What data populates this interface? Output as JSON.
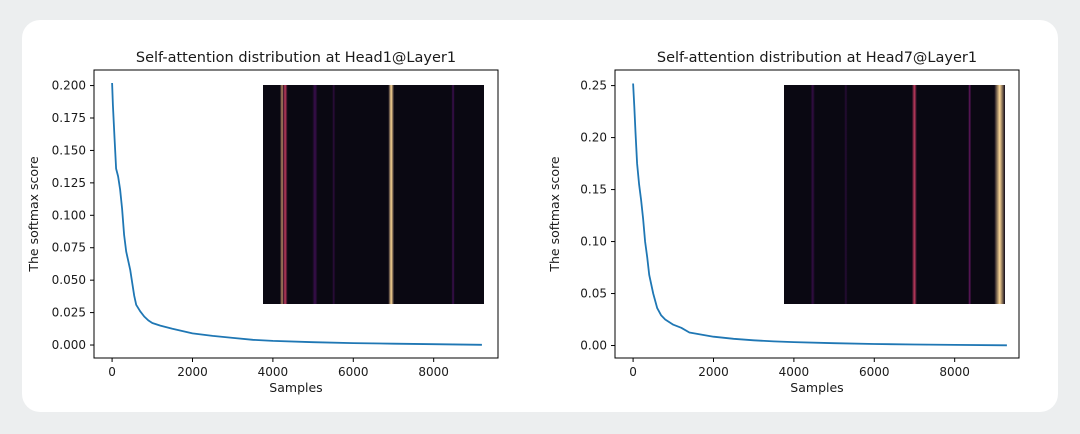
{
  "chart_data": [
    {
      "type": "line",
      "title": "Self-attention distribution at Head1@Layer1",
      "xlabel": "Samples",
      "ylabel": "The softmax score",
      "xlim": [
        -450,
        9600
      ],
      "ylim": [
        -0.01,
        0.212
      ],
      "xticks": [
        0,
        2000,
        4000,
        6000,
        8000
      ],
      "xtick_labels": [
        "0",
        "2000",
        "4000",
        "6000",
        "8000"
      ],
      "yticks": [
        0.0,
        0.025,
        0.05,
        0.075,
        0.1,
        0.125,
        0.15,
        0.175,
        0.2
      ],
      "ytick_labels": [
        "0.000",
        "0.025",
        "0.050",
        "0.075",
        "0.100",
        "0.125",
        "0.150",
        "0.175",
        "0.200"
      ],
      "grid": false,
      "line_color": "#1f77b4",
      "series": [
        {
          "x": [
            0,
            20,
            60,
            100,
            150,
            200,
            250,
            300,
            350,
            400,
            450,
            500,
            550,
            600,
            700,
            800,
            900,
            1000,
            1200,
            1500,
            2000,
            2500,
            3000,
            3500,
            4000,
            5000,
            6000,
            7000,
            8000,
            9200
          ],
          "y": [
            0.202,
            0.185,
            0.16,
            0.136,
            0.13,
            0.12,
            0.105,
            0.085,
            0.072,
            0.065,
            0.058,
            0.048,
            0.038,
            0.031,
            0.026,
            0.022,
            0.019,
            0.017,
            0.015,
            0.0125,
            0.009,
            0.007,
            0.0055,
            0.004,
            0.0032,
            0.0022,
            0.0015,
            0.001,
            0.0006,
            0.0002
          ]
        }
      ],
      "inset": {
        "type": "heatmap",
        "colormap": "magma",
        "bands": [
          {
            "pos": 0.09,
            "width": 0.012,
            "intensity": 0.9
          },
          {
            "pos": 0.1,
            "width": 0.01,
            "intensity": 0.55
          },
          {
            "pos": 0.235,
            "width": 0.01,
            "intensity": 0.18
          },
          {
            "pos": 0.32,
            "width": 0.006,
            "intensity": 0.12
          },
          {
            "pos": 0.58,
            "width": 0.012,
            "intensity": 0.95
          },
          {
            "pos": 0.86,
            "width": 0.006,
            "intensity": 0.2
          }
        ]
      }
    },
    {
      "type": "line",
      "title": "Self-attention distribution at Head7@Layer1",
      "xlabel": "Samples",
      "ylabel": "The softmax score",
      "xlim": [
        -450,
        9600
      ],
      "ylim": [
        -0.012,
        0.265
      ],
      "xticks": [
        0,
        2000,
        4000,
        6000,
        8000
      ],
      "xtick_labels": [
        "0",
        "2000",
        "4000",
        "6000",
        "8000"
      ],
      "yticks": [
        0.0,
        0.05,
        0.1,
        0.15,
        0.2,
        0.25
      ],
      "ytick_labels": [
        "0.00",
        "0.05",
        "0.10",
        "0.15",
        "0.20",
        "0.25"
      ],
      "grid": false,
      "line_color": "#1f77b4",
      "series": [
        {
          "x": [
            0,
            30,
            60,
            100,
            150,
            200,
            250,
            300,
            350,
            400,
            500,
            600,
            700,
            800,
            1000,
            1200,
            1400,
            1700,
            2000,
            2500,
            3000,
            3500,
            4000,
            5000,
            6000,
            7000,
            8000,
            9300
          ],
          "y": [
            0.252,
            0.23,
            0.205,
            0.175,
            0.155,
            0.14,
            0.122,
            0.1,
            0.085,
            0.068,
            0.05,
            0.036,
            0.029,
            0.025,
            0.02,
            0.017,
            0.0125,
            0.0105,
            0.0085,
            0.0065,
            0.005,
            0.004,
            0.0033,
            0.0022,
            0.0015,
            0.001,
            0.0006,
            0.0002
          ]
        }
      ],
      "inset": {
        "type": "heatmap",
        "colormap": "magma",
        "bands": [
          {
            "pos": 0.13,
            "width": 0.008,
            "intensity": 0.15
          },
          {
            "pos": 0.28,
            "width": 0.006,
            "intensity": 0.1
          },
          {
            "pos": 0.59,
            "width": 0.01,
            "intensity": 0.55
          },
          {
            "pos": 0.84,
            "width": 0.006,
            "intensity": 0.3
          },
          {
            "pos": 0.98,
            "width": 0.022,
            "intensity": 0.95
          }
        ]
      }
    }
  ]
}
